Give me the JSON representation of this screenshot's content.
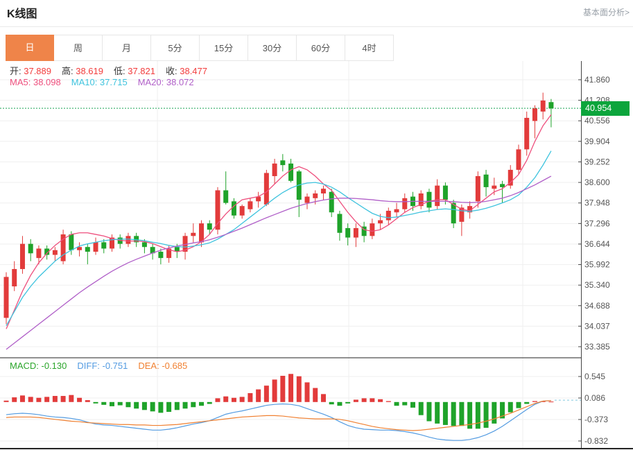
{
  "header": {
    "title": "K线图",
    "link_label": "基本面分析>"
  },
  "tabs": {
    "active_bg": "#ef8449",
    "items": [
      {
        "label": "日",
        "active": true
      },
      {
        "label": "周",
        "active": false
      },
      {
        "label": "月",
        "active": false
      },
      {
        "label": "5分",
        "active": false
      },
      {
        "label": "15分",
        "active": false
      },
      {
        "label": "30分",
        "active": false
      },
      {
        "label": "60分",
        "active": false
      },
      {
        "label": "4时",
        "active": false
      }
    ]
  },
  "info_bar": {
    "value_color": "#f23c3c",
    "items": [
      {
        "label": "开:",
        "value": "37.889"
      },
      {
        "label": "高:",
        "value": "38.619"
      },
      {
        "label": "低:",
        "value": "37.821"
      },
      {
        "label": "收:",
        "value": "38.477"
      }
    ]
  },
  "ma_bar": {
    "items": [
      {
        "label": "MA5:",
        "value": "38.098",
        "color": "#ee4f7d"
      },
      {
        "label": "MA10:",
        "value": "37.715",
        "color": "#3ec3de"
      },
      {
        "label": "MA20:",
        "value": "38.072",
        "color": "#b05fc8"
      }
    ]
  },
  "macd_bar": {
    "items": [
      {
        "label": "MACD:",
        "value": "-0.130",
        "color": "#2aa52a"
      },
      {
        "label": "DIFF:",
        "value": "-0.751",
        "color": "#539be1"
      },
      {
        "label": "DEA:",
        "value": "-0.685",
        "color": "#f08031"
      }
    ]
  },
  "chart_data": {
    "type": "candlestick+macd",
    "title": "K线图 daily candlestick with MA5/MA10/MA20 and MACD",
    "interval": "日",
    "current_price": {
      "label": "40.954",
      "value": 40.954,
      "tag_color": "#0ca53c",
      "line_color": "#18a452"
    },
    "y_axis_ticks": [
      {
        "label": "41.860",
        "value": 41.86
      },
      {
        "label": "41.208",
        "value": 41.208
      },
      {
        "label": "40.556",
        "value": 40.556
      },
      {
        "label": "39.904",
        "value": 39.904
      },
      {
        "label": "39.252",
        "value": 39.252
      },
      {
        "label": "38.600",
        "value": 38.6
      },
      {
        "label": "37.948",
        "value": 37.948
      },
      {
        "label": "37.296",
        "value": 37.296
      },
      {
        "label": "36.644",
        "value": 36.644
      },
      {
        "label": "35.992",
        "value": 35.992
      },
      {
        "label": "35.340",
        "value": 35.34
      },
      {
        "label": "34.688",
        "value": 34.688
      },
      {
        "label": "34.037",
        "value": 34.037
      },
      {
        "label": "33.385",
        "value": 33.385
      }
    ],
    "macd_axis_ticks": [
      {
        "label": "0.545",
        "value": 0.545
      },
      {
        "label": "0.086",
        "value": 0.086
      },
      {
        "label": "-0.373",
        "value": -0.373
      },
      {
        "label": "-0.832",
        "value": -0.832
      }
    ],
    "x_gridlines": [
      227,
      503,
      754
    ],
    "candles": [
      [
        34.3,
        35.75,
        34.1,
        35.6
      ],
      [
        35.3,
        36.1,
        35.15,
        35.85
      ],
      [
        35.85,
        36.9,
        35.7,
        36.65
      ],
      [
        36.65,
        36.8,
        36.1,
        36.35
      ],
      [
        36.2,
        36.6,
        36.0,
        36.5
      ],
      [
        36.5,
        36.6,
        36.15,
        36.3
      ],
      [
        36.3,
        36.55,
        36.1,
        36.45
      ],
      [
        36.1,
        37.1,
        36.0,
        36.95
      ],
      [
        36.95,
        37.05,
        36.3,
        36.45
      ],
      [
        36.45,
        36.7,
        36.25,
        36.55
      ],
      [
        36.55,
        36.65,
        36.0,
        36.4
      ],
      [
        36.4,
        36.85,
        36.3,
        36.7
      ],
      [
        36.7,
        36.8,
        36.35,
        36.5
      ],
      [
        36.5,
        36.95,
        36.4,
        36.85
      ],
      [
        36.85,
        36.95,
        36.5,
        36.65
      ],
      [
        36.65,
        37.0,
        36.55,
        36.9
      ],
      [
        36.9,
        37.0,
        36.55,
        36.7
      ],
      [
        36.7,
        36.8,
        36.35,
        36.55
      ],
      [
        36.55,
        36.65,
        36.15,
        36.35
      ],
      [
        36.4,
        36.5,
        36.0,
        36.2
      ],
      [
        36.2,
        36.6,
        36.05,
        36.5
      ],
      [
        36.55,
        36.65,
        36.2,
        36.4
      ],
      [
        36.4,
        37.0,
        36.15,
        36.9
      ],
      [
        36.9,
        37.3,
        36.7,
        37.0
      ],
      [
        36.7,
        37.4,
        36.55,
        37.3
      ],
      [
        37.3,
        37.4,
        36.95,
        37.1
      ],
      [
        37.1,
        38.45,
        36.95,
        38.35
      ],
      [
        38.35,
        38.95,
        37.9,
        37.95
      ],
      [
        38.0,
        38.1,
        37.45,
        37.55
      ],
      [
        37.55,
        37.9,
        37.45,
        37.85
      ],
      [
        37.75,
        38.1,
        37.65,
        38.0
      ],
      [
        38.0,
        38.3,
        37.8,
        38.15
      ],
      [
        37.9,
        39.0,
        37.85,
        38.9
      ],
      [
        38.8,
        39.35,
        38.55,
        39.2
      ],
      [
        39.3,
        39.5,
        38.95,
        39.15
      ],
      [
        39.2,
        39.35,
        38.6,
        38.65
      ],
      [
        38.95,
        39.0,
        37.5,
        38.05
      ],
      [
        37.95,
        38.25,
        37.75,
        38.15
      ],
      [
        38.1,
        38.35,
        37.9,
        38.25
      ],
      [
        38.25,
        38.5,
        38.05,
        38.4
      ],
      [
        38.3,
        38.4,
        37.5,
        37.65
      ],
      [
        37.6,
        37.7,
        36.75,
        37.0
      ],
      [
        37.15,
        37.3,
        36.6,
        36.85
      ],
      [
        36.85,
        37.3,
        36.55,
        37.15
      ],
      [
        37.2,
        37.35,
        36.7,
        36.9
      ],
      [
        36.9,
        37.45,
        36.8,
        37.3
      ],
      [
        37.3,
        37.6,
        37.1,
        37.4
      ],
      [
        37.4,
        37.8,
        37.25,
        37.7
      ],
      [
        37.65,
        37.95,
        37.5,
        37.75
      ],
      [
        37.75,
        38.25,
        37.65,
        38.1
      ],
      [
        38.15,
        38.3,
        37.7,
        37.85
      ],
      [
        37.85,
        38.35,
        37.75,
        38.25
      ],
      [
        38.3,
        38.4,
        37.65,
        37.8
      ],
      [
        37.85,
        38.7,
        37.75,
        38.5
      ],
      [
        38.5,
        38.6,
        37.9,
        38.05
      ],
      [
        37.95,
        38.05,
        37.15,
        37.3
      ],
      [
        37.35,
        37.9,
        36.9,
        37.8
      ],
      [
        37.65,
        38.0,
        37.45,
        37.85
      ],
      [
        38.0,
        38.95,
        37.8,
        38.8
      ],
      [
        38.85,
        39.0,
        38.15,
        38.45
      ],
      [
        38.4,
        38.75,
        38.2,
        38.5
      ],
      [
        38.55,
        38.65,
        37.95,
        38.45
      ],
      [
        38.5,
        39.15,
        38.4,
        39.0
      ],
      [
        39.0,
        39.8,
        38.85,
        39.65
      ],
      [
        39.65,
        40.85,
        39.45,
        40.65
      ],
      [
        40.55,
        41.05,
        40.0,
        40.95
      ],
      [
        40.85,
        41.45,
        40.6,
        41.2
      ],
      [
        41.15,
        41.25,
        40.35,
        40.95
      ]
    ],
    "ma5": [
      33.95,
      34.55,
      35.15,
      35.65,
      36.05,
      36.35,
      36.6,
      36.8,
      36.95,
      37.0,
      37.0,
      36.95,
      36.9,
      36.82,
      36.76,
      36.74,
      36.74,
      36.72,
      36.66,
      36.56,
      36.46,
      36.4,
      36.45,
      36.56,
      36.72,
      36.95,
      37.3,
      37.6,
      37.85,
      38.05,
      38.1,
      38.15,
      38.3,
      38.55,
      38.8,
      39.0,
      39.1,
      39.0,
      38.8,
      38.55,
      38.35,
      38.0,
      37.65,
      37.35,
      37.1,
      37.05,
      37.1,
      37.25,
      37.45,
      37.65,
      37.8,
      37.9,
      38.0,
      38.05,
      38.05,
      37.9,
      37.75,
      37.7,
      37.9,
      38.1,
      38.3,
      38.4,
      38.6,
      38.85,
      39.3,
      39.9,
      40.4,
      40.75
    ],
    "ma10": [
      34.05,
      34.5,
      34.95,
      35.3,
      35.6,
      35.85,
      36.1,
      36.3,
      36.45,
      36.58,
      36.65,
      36.7,
      36.75,
      36.78,
      36.8,
      36.8,
      36.78,
      36.75,
      36.7,
      36.66,
      36.6,
      36.56,
      36.55,
      36.58,
      36.62,
      36.68,
      36.8,
      36.95,
      37.1,
      37.3,
      37.5,
      37.7,
      37.9,
      38.1,
      38.28,
      38.42,
      38.52,
      38.58,
      38.6,
      38.55,
      38.45,
      38.3,
      38.12,
      37.95,
      37.78,
      37.62,
      37.52,
      37.48,
      37.5,
      37.55,
      37.6,
      37.66,
      37.7,
      37.74,
      37.76,
      37.74,
      37.7,
      37.68,
      37.72,
      37.78,
      37.86,
      37.95,
      38.05,
      38.2,
      38.45,
      38.75,
      39.15,
      39.6
    ],
    "ma20": [
      33.3,
      33.5,
      33.7,
      33.9,
      34.1,
      34.3,
      34.5,
      34.7,
      34.9,
      35.1,
      35.28,
      35.45,
      35.62,
      35.78,
      35.92,
      36.05,
      36.16,
      36.26,
      36.36,
      36.45,
      36.52,
      36.58,
      36.63,
      36.68,
      36.72,
      36.78,
      36.86,
      36.95,
      37.05,
      37.15,
      37.26,
      37.37,
      37.48,
      37.58,
      37.68,
      37.78,
      37.86,
      37.93,
      37.99,
      38.04,
      38.08,
      38.1,
      38.1,
      38.09,
      38.07,
      38.05,
      38.02,
      38.0,
      37.99,
      37.99,
      38.0,
      38.0,
      38.0,
      38.0,
      38.0,
      37.99,
      37.97,
      37.96,
      37.97,
      38.0,
      38.05,
      38.1,
      38.18,
      38.28,
      38.4,
      38.52,
      38.66,
      38.8
    ],
    "macd": {
      "hist": [
        0.03,
        0.1,
        0.14,
        0.11,
        0.09,
        0.11,
        0.13,
        0.13,
        0.15,
        0.09,
        0.04,
        -0.03,
        -0.06,
        -0.09,
        -0.07,
        -0.11,
        -0.14,
        -0.17,
        -0.2,
        -0.23,
        -0.21,
        -0.17,
        -0.14,
        -0.11,
        -0.08,
        -0.04,
        0.08,
        0.12,
        0.09,
        0.11,
        0.19,
        0.27,
        0.35,
        0.48,
        0.56,
        0.6,
        0.55,
        0.42,
        0.3,
        0.17,
        -0.05,
        -0.08,
        -0.03,
        0.05,
        0.08,
        0.08,
        0.06,
        0.02,
        -0.08,
        -0.07,
        -0.12,
        -0.28,
        -0.41,
        -0.46,
        -0.49,
        -0.51,
        -0.51,
        -0.57,
        -0.57,
        -0.55,
        -0.46,
        -0.35,
        -0.22,
        -0.13,
        -0.04,
        0.02,
        0.02,
        0.01
      ],
      "diff": [
        -0.27,
        -0.25,
        -0.24,
        -0.25,
        -0.27,
        -0.3,
        -0.32,
        -0.33,
        -0.35,
        -0.38,
        -0.43,
        -0.47,
        -0.49,
        -0.5,
        -0.52,
        -0.54,
        -0.56,
        -0.58,
        -0.6,
        -0.6,
        -0.58,
        -0.55,
        -0.51,
        -0.47,
        -0.44,
        -0.4,
        -0.33,
        -0.26,
        -0.22,
        -0.19,
        -0.15,
        -0.11,
        -0.07,
        -0.05,
        -0.04,
        -0.05,
        -0.08,
        -0.14,
        -0.2,
        -0.26,
        -0.33,
        -0.42,
        -0.5,
        -0.55,
        -0.58,
        -0.59,
        -0.6,
        -0.6,
        -0.61,
        -0.63,
        -0.66,
        -0.7,
        -0.75,
        -0.79,
        -0.81,
        -0.82,
        -0.82,
        -0.8,
        -0.76,
        -0.7,
        -0.62,
        -0.52,
        -0.4,
        -0.28,
        -0.16,
        -0.05,
        0.02,
        0.03
      ],
      "dea": [
        -0.33,
        -0.32,
        -0.32,
        -0.32,
        -0.33,
        -0.35,
        -0.37,
        -0.39,
        -0.41,
        -0.42,
        -0.44,
        -0.45,
        -0.46,
        -0.47,
        -0.48,
        -0.48,
        -0.49,
        -0.49,
        -0.5,
        -0.5,
        -0.49,
        -0.48,
        -0.46,
        -0.44,
        -0.42,
        -0.4,
        -0.38,
        -0.36,
        -0.34,
        -0.32,
        -0.31,
        -0.3,
        -0.29,
        -0.29,
        -0.3,
        -0.32,
        -0.34,
        -0.35,
        -0.36,
        -0.36,
        -0.36,
        -0.37,
        -0.4,
        -0.44,
        -0.48,
        -0.52,
        -0.55,
        -0.57,
        -0.59,
        -0.6,
        -0.61,
        -0.6,
        -0.58,
        -0.56,
        -0.54,
        -0.52,
        -0.5,
        -0.48,
        -0.45,
        -0.41,
        -0.36,
        -0.3,
        -0.24,
        -0.17,
        -0.1,
        -0.03,
        0.02,
        0.03
      ]
    },
    "colors": {
      "up": "#e23b3b",
      "down": "#1fa32a",
      "ma5": "#ee4f7d",
      "ma10": "#3ec3de",
      "ma20": "#b05fc8",
      "diff": "#539be1",
      "dea": "#f08031",
      "grid": "#efefef",
      "axis_line": "#444444",
      "tick_text": "#555555",
      "separator": "#222222"
    }
  }
}
